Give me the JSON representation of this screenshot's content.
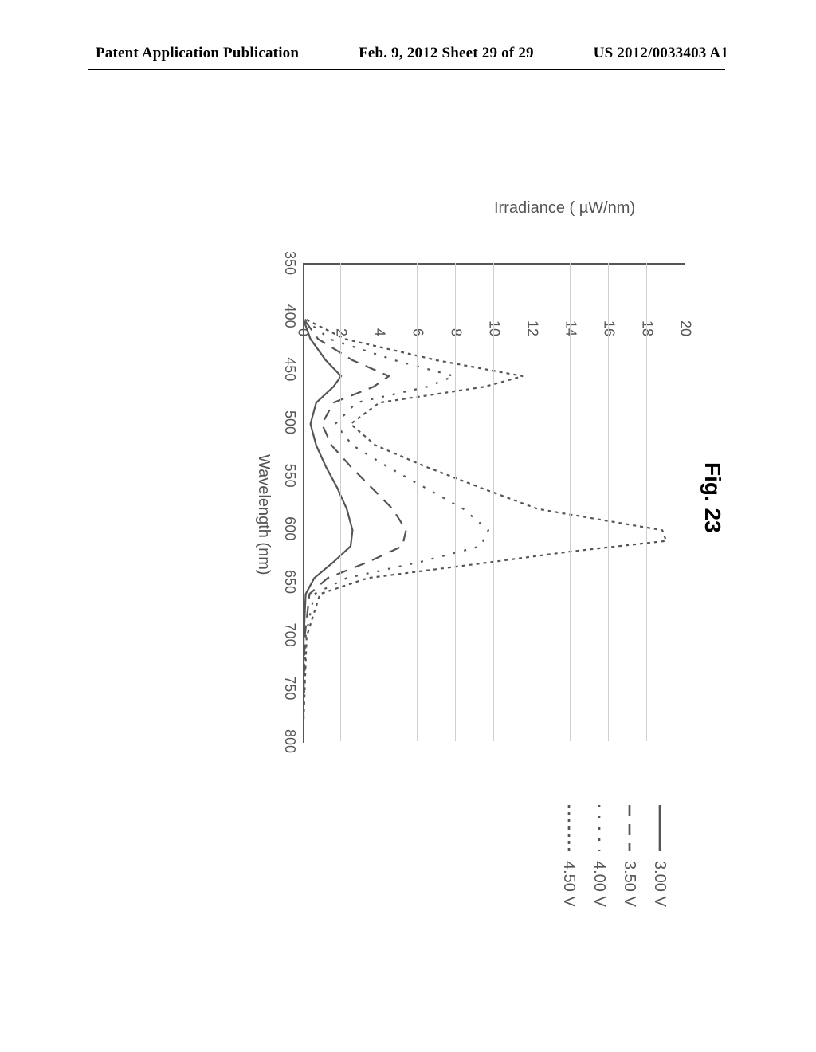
{
  "header": {
    "left": "Patent Application Publication",
    "center": "Feb. 9, 2012  Sheet 29 of 29",
    "right": "US 2012/0033403 A1"
  },
  "figure": {
    "title": "Fig. 23",
    "chart": {
      "type": "line",
      "xlabel": "Wavelength (nm)",
      "ylabel": "Irradiance ( µW/nm)",
      "xlim": [
        350,
        800
      ],
      "ylim": [
        0,
        20
      ],
      "xtick_step": 50,
      "ytick_step": 2,
      "xticks": [
        350,
        400,
        450,
        500,
        550,
        600,
        650,
        700,
        750,
        800
      ],
      "yticks": [
        0,
        2,
        4,
        6,
        8,
        10,
        12,
        14,
        16,
        18,
        20
      ],
      "grid_color": "#cfcfcf",
      "axis_color": "#555555",
      "background_color": "#ffffff",
      "label_fontsize": 20,
      "tick_fontsize": 18,
      "line_color": "#555555",
      "line_width": 2.2,
      "series": [
        {
          "name": "3.00 V",
          "label": "3.00 V",
          "dash": "solid",
          "points": [
            [
              350,
              0
            ],
            [
              400,
              0
            ],
            [
              420,
              0.4
            ],
            [
              440,
              1.2
            ],
            [
              455,
              2.0
            ],
            [
              465,
              1.6
            ],
            [
              480,
              0.7
            ],
            [
              500,
              0.4
            ],
            [
              520,
              0.7
            ],
            [
              540,
              1.2
            ],
            [
              560,
              1.8
            ],
            [
              580,
              2.3
            ],
            [
              600,
              2.6
            ],
            [
              615,
              2.5
            ],
            [
              630,
              1.6
            ],
            [
              645,
              0.6
            ],
            [
              660,
              0.15
            ],
            [
              700,
              0.05
            ],
            [
              750,
              0.03
            ],
            [
              800,
              0
            ]
          ]
        },
        {
          "name": "3.50 V",
          "label": "3.50 V",
          "dash": "long-dash",
          "points": [
            [
              350,
              0
            ],
            [
              400,
              0
            ],
            [
              420,
              0.8
            ],
            [
              440,
              2.6
            ],
            [
              455,
              4.5
            ],
            [
              465,
              3.7
            ],
            [
              480,
              1.6
            ],
            [
              500,
              1.0
            ],
            [
              520,
              1.5
            ],
            [
              540,
              2.5
            ],
            [
              560,
              3.6
            ],
            [
              580,
              4.7
            ],
            [
              600,
              5.4
            ],
            [
              615,
              5.2
            ],
            [
              630,
              3.4
            ],
            [
              645,
              1.3
            ],
            [
              660,
              0.35
            ],
            [
              700,
              0.1
            ],
            [
              750,
              0.05
            ],
            [
              800,
              0
            ]
          ]
        },
        {
          "name": "4.00 V",
          "label": "4.00 V",
          "dash": "sparse-dot",
          "points": [
            [
              350,
              0
            ],
            [
              400,
              0
            ],
            [
              420,
              1.4
            ],
            [
              440,
              4.8
            ],
            [
              455,
              7.9
            ],
            [
              465,
              6.5
            ],
            [
              480,
              2.8
            ],
            [
              500,
              1.7
            ],
            [
              520,
              2.6
            ],
            [
              540,
              4.4
            ],
            [
              560,
              6.4
            ],
            [
              580,
              8.4
            ],
            [
              600,
              9.7
            ],
            [
              615,
              9.3
            ],
            [
              630,
              6.1
            ],
            [
              645,
              2.3
            ],
            [
              660,
              0.6
            ],
            [
              700,
              0.15
            ],
            [
              750,
              0.08
            ],
            [
              800,
              0
            ]
          ]
        },
        {
          "name": "4.50 V",
          "label": "4.50 V",
          "dash": "dense-dot",
          "points": [
            [
              350,
              0
            ],
            [
              400,
              0
            ],
            [
              420,
              2.2
            ],
            [
              440,
              7.0
            ],
            [
              455,
              11.5
            ],
            [
              465,
              9.5
            ],
            [
              480,
              4.0
            ],
            [
              500,
              2.5
            ],
            [
              520,
              3.8
            ],
            [
              540,
              6.4
            ],
            [
              560,
              9.3
            ],
            [
              580,
              12.3
            ],
            [
              600,
              18.8
            ],
            [
              610,
              19.0
            ],
            [
              620,
              14.0
            ],
            [
              632,
              9.0
            ],
            [
              645,
              3.4
            ],
            [
              660,
              0.9
            ],
            [
              700,
              0.2
            ],
            [
              750,
              0.1
            ],
            [
              800,
              0
            ]
          ]
        }
      ],
      "dash_patterns": {
        "solid": "",
        "long-dash": "14 10",
        "sparse-dot": "3 11",
        "dense-dot": "4 5"
      }
    }
  }
}
